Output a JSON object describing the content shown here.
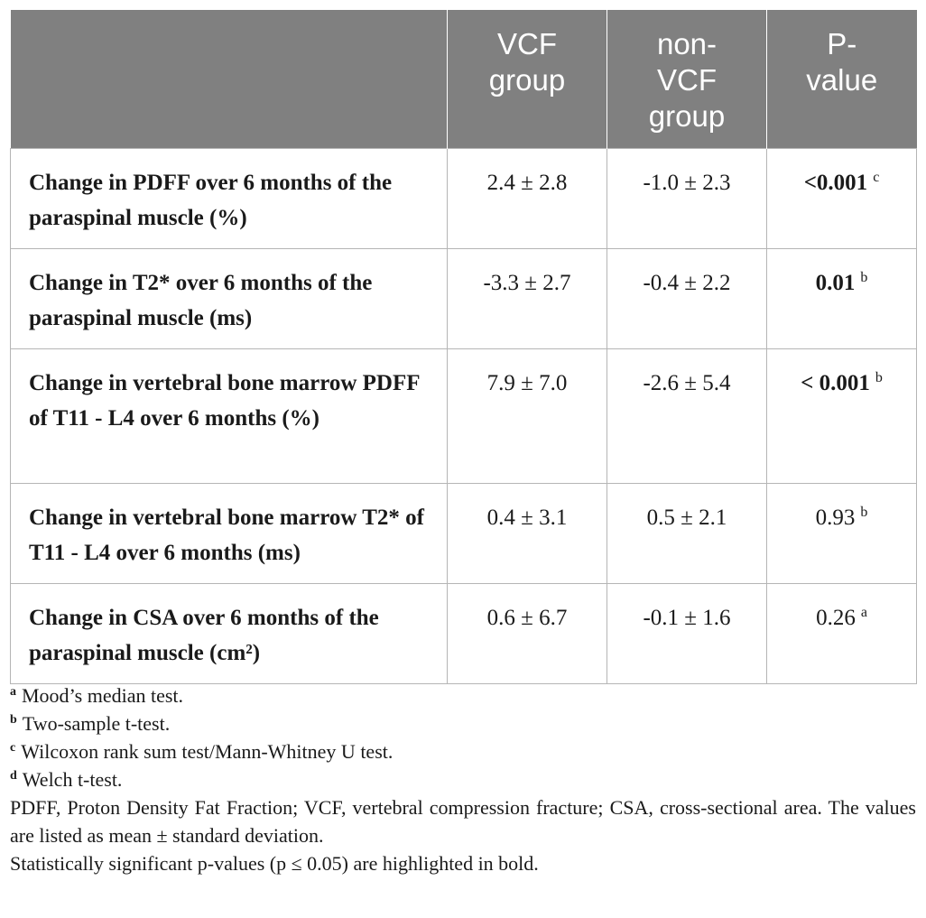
{
  "header": {
    "col0": "",
    "col1_lines": [
      "VCF",
      "group"
    ],
    "col2_lines": [
      "non-",
      "VCF",
      "group"
    ],
    "col3_lines": [
      "P-",
      "value"
    ]
  },
  "rows": [
    {
      "label": "Change in PDFF over 6 months of the paraspinal muscle (%)",
      "vcf": "2.4 ± 2.8",
      "non_vcf": "-1.0 ± 2.3",
      "p_value": "<0.001",
      "p_bold": true,
      "p_note": "c"
    },
    {
      "label": "Change in T2* over 6 months of the paraspinal muscle (ms)",
      "vcf": "-3.3 ± 2.7",
      "non_vcf": "-0.4 ± 2.2",
      "p_value": "0.01",
      "p_bold": true,
      "p_note": "b"
    },
    {
      "label": "Change in vertebral bone marrow PDFF of T11 - L4 over 6 months (%)",
      "vcf": "7.9 ± 7.0",
      "non_vcf": "-2.6 ± 5.4",
      "p_value": "< 0.001",
      "p_bold": true,
      "p_note": "b"
    },
    {
      "label": "Change in vertebral bone marrow T2* of T11 - L4 over 6 months (ms)",
      "vcf": "0.4 ± 3.1",
      "non_vcf": "0.5 ± 2.1",
      "p_value": "0.93",
      "p_bold": false,
      "p_note": "b"
    },
    {
      "label": "Change in CSA over 6 months of the paraspinal muscle (cm²)",
      "vcf": "0.6 ± 6.7",
      "non_vcf": "-0.1 ± 1.6",
      "p_value": "0.26",
      "p_bold": false,
      "p_note": "a"
    }
  ],
  "footnotes": [
    {
      "mark": "a",
      "text": "Mood’s median test."
    },
    {
      "mark": "b",
      "text": "Two-sample t-test."
    },
    {
      "mark": "c",
      "text": "Wilcoxon rank sum test/Mann-Whitney U test."
    },
    {
      "mark": "d",
      "text": "Welch t-test."
    }
  ],
  "abbreviations": "PDFF, Proton Density Fat Fraction; VCF, vertebral compression fracture; CSA, cross-sectional area. The values are listed as mean ± standard deviation.",
  "significance_note": "Statistically significant p-values (p ≤ 0.05) are highlighted in bold.",
  "colors": {
    "header_bg": "#808080",
    "header_text": "#ffffff",
    "border": "#b5b5b5"
  }
}
